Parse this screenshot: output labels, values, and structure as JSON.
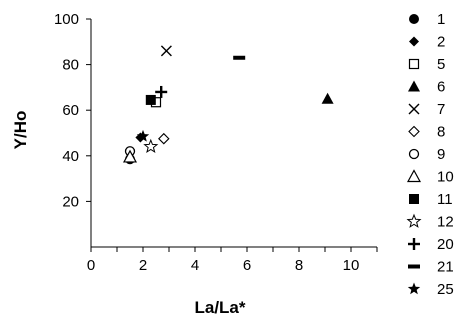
{
  "chart_data": {
    "type": "scatter",
    "xlabel": "La/La*",
    "ylabel": "Y/Ho",
    "xlim": [
      0,
      11
    ],
    "ylim": [
      0,
      100
    ],
    "xticks": [
      "0",
      "2",
      "4",
      "6",
      "8",
      "10"
    ],
    "yticks": [
      "20",
      "40",
      "60",
      "80",
      "100"
    ],
    "grid": false,
    "legend_position": "right",
    "series": [
      {
        "name": "1",
        "marker": "filled-circle",
        "points": [
          [
            1.5,
            38.5
          ]
        ]
      },
      {
        "name": "2",
        "marker": "filled-diamond",
        "points": [
          [
            1.9,
            48
          ]
        ]
      },
      {
        "name": "5",
        "marker": "open-square",
        "points": [
          [
            2.5,
            63.5
          ]
        ]
      },
      {
        "name": "6",
        "marker": "filled-triangle",
        "points": [
          [
            9.1,
            65
          ]
        ]
      },
      {
        "name": "7",
        "marker": "x-cross",
        "points": [
          [
            2.9,
            86
          ]
        ]
      },
      {
        "name": "8",
        "marker": "open-diamond",
        "points": [
          [
            2.8,
            47.5
          ]
        ]
      },
      {
        "name": "9",
        "marker": "open-circle",
        "points": [
          [
            1.5,
            42
          ]
        ]
      },
      {
        "name": "10",
        "marker": "open-triangle",
        "points": [
          [
            1.5,
            39.5
          ]
        ]
      },
      {
        "name": "11",
        "marker": "filled-square",
        "points": [
          [
            2.3,
            64.5
          ]
        ]
      },
      {
        "name": "12",
        "marker": "open-star",
        "points": [
          [
            2.3,
            44
          ]
        ]
      },
      {
        "name": "20",
        "marker": "plus",
        "points": [
          [
            2.7,
            68
          ]
        ]
      },
      {
        "name": "21",
        "marker": "dash",
        "points": [
          [
            5.7,
            83
          ]
        ]
      },
      {
        "name": "25",
        "marker": "filled-star",
        "points": [
          [
            2.0,
            48.5
          ]
        ]
      }
    ]
  }
}
